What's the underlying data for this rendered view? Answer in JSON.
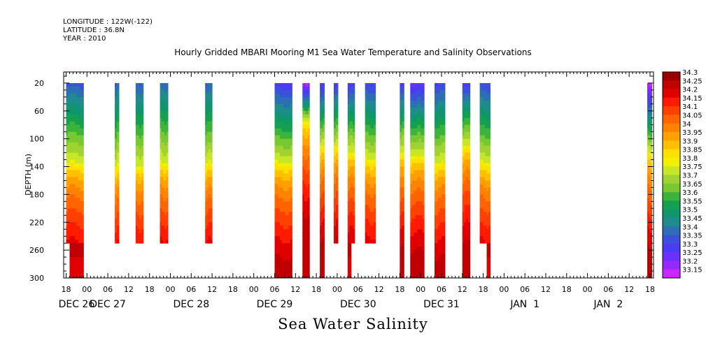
{
  "meta": {
    "longitude": "LONGITUDE : 122W(-122)",
    "latitude": "LATITUDE : 36.8N",
    "year": "YEAR : 2010"
  },
  "chart_data": {
    "type": "heatmap",
    "title": "Hourly Gridded MBARI Mooring M1 Sea Water Temperature and Salinity Observations",
    "xlabel": "Sea Water Salinity",
    "ylabel": "DEPTH (m)",
    "ylim": [
      300,
      4
    ],
    "y_ticks": [
      20,
      60,
      100,
      140,
      180,
      220,
      260,
      300
    ],
    "x_hour_ticks": [
      {
        "t": 0,
        "label": "18"
      },
      {
        "t": 6,
        "label": "00"
      },
      {
        "t": 12,
        "label": "06"
      },
      {
        "t": 18,
        "label": "12"
      },
      {
        "t": 24,
        "label": "18"
      },
      {
        "t": 30,
        "label": "00"
      },
      {
        "t": 36,
        "label": "06"
      },
      {
        "t": 42,
        "label": "12"
      },
      {
        "t": 48,
        "label": "18"
      },
      {
        "t": 54,
        "label": "00"
      },
      {
        "t": 60,
        "label": "06"
      },
      {
        "t": 66,
        "label": "12"
      },
      {
        "t": 72,
        "label": "18"
      },
      {
        "t": 78,
        "label": "00"
      },
      {
        "t": 84,
        "label": "06"
      },
      {
        "t": 90,
        "label": "12"
      },
      {
        "t": 96,
        "label": "18"
      },
      {
        "t": 102,
        "label": "00"
      },
      {
        "t": 108,
        "label": "06"
      },
      {
        "t": 114,
        "label": "12"
      },
      {
        "t": 120,
        "label": "18"
      },
      {
        "t": 126,
        "label": "00"
      },
      {
        "t": 132,
        "label": "06"
      },
      {
        "t": 138,
        "label": "12"
      },
      {
        "t": 144,
        "label": "18"
      },
      {
        "t": 150,
        "label": "00"
      },
      {
        "t": 156,
        "label": "06"
      },
      {
        "t": 162,
        "label": "12"
      },
      {
        "t": 168,
        "label": "18"
      }
    ],
    "x_day_labels": [
      {
        "t": 3,
        "label": "DEC 26"
      },
      {
        "t": 12,
        "label": "DEC 27"
      },
      {
        "t": 36,
        "label": "DEC 28"
      },
      {
        "t": 60,
        "label": "DEC 29"
      },
      {
        "t": 84,
        "label": "DEC 30"
      },
      {
        "t": 108,
        "label": "DEC 31"
      },
      {
        "t": 132,
        "label": "JAN  1"
      },
      {
        "t": 156,
        "label": "JAN  2"
      }
    ],
    "xlim": [
      -0.7,
      169
    ],
    "colorbar": {
      "levels": [
        "34.3",
        "34.25",
        "34.2",
        "34.15",
        "34.1",
        "34.05",
        "34",
        "33.95",
        "33.9",
        "33.85",
        "33.8",
        "33.75",
        "33.7",
        "33.65",
        "33.6",
        "33.55",
        "33.5",
        "33.45",
        "33.4",
        "33.35",
        "33.3",
        "33.25",
        "33.2",
        "33.15"
      ],
      "colors": [
        "#9b0000",
        "#c00000",
        "#e00000",
        "#ff1a00",
        "#ff4000",
        "#ff6400",
        "#ff8200",
        "#ffa000",
        "#ffc000",
        "#ffe000",
        "#f0f000",
        "#c8e628",
        "#a0d232",
        "#78c832",
        "#3cb43c",
        "#14a050",
        "#10966e",
        "#1e8c8c",
        "#2d6eb4",
        "#3c50dc",
        "#4a3cf0",
        "#6a30ff",
        "#9628ff",
        "#c828ff"
      ]
    },
    "segments": [
      {
        "t0": 0,
        "t1": 5,
        "bottom": 250,
        "deep_bottom": 300,
        "deep_t0": 1,
        "deep_t1": 5,
        "surf": 33.38,
        "mid_depth": 135
      },
      {
        "t0": 14,
        "t1": 15.2,
        "bottom": 250,
        "surf": 33.4,
        "mid_depth": 140
      },
      {
        "t0": 20,
        "t1": 22.2,
        "bottom": 250,
        "surf": 33.4,
        "mid_depth": 140
      },
      {
        "t0": 27,
        "t1": 29.3,
        "bottom": 250,
        "surf": 33.42,
        "mid_depth": 135
      },
      {
        "t0": 40,
        "t1": 42,
        "bottom": 250,
        "surf": 33.4,
        "mid_depth": 135
      },
      {
        "t0": 60,
        "t1": 65,
        "bottom": 300,
        "surf": 33.32,
        "mid_depth": 135
      },
      {
        "t0": 68,
        "t1": 70,
        "bottom": 300,
        "surf": 33.18,
        "mid_depth": 75
      },
      {
        "t0": 73,
        "t1": 74.3,
        "bottom": 300,
        "surf": 33.3,
        "mid_depth": 110
      },
      {
        "t0": 77,
        "t1": 78.2,
        "bottom": 250,
        "surf": 33.32,
        "mid_depth": 110
      },
      {
        "t0": 81,
        "t1": 83,
        "bottom": 250,
        "deep_bottom": 300,
        "deep_t0": 81,
        "deep_t1": 82,
        "surf": 33.32,
        "mid_depth": 120
      },
      {
        "t0": 86,
        "t1": 89,
        "bottom": 250,
        "surf": 33.35,
        "mid_depth": 130
      },
      {
        "t0": 96,
        "t1": 97.2,
        "bottom": 300,
        "surf": 33.32,
        "mid_depth": 120
      },
      {
        "t0": 99,
        "t1": 103,
        "bottom": 300,
        "surf": 33.28,
        "mid_depth": 125
      },
      {
        "t0": 106,
        "t1": 109,
        "bottom": 300,
        "surf": 33.35,
        "mid_depth": 135
      },
      {
        "t0": 114,
        "t1": 116.2,
        "bottom": 300,
        "surf": 33.32,
        "mid_depth": 110
      },
      {
        "t0": 119,
        "t1": 122,
        "bottom": 250,
        "deep_bottom": 300,
        "deep_t0": 121,
        "deep_t1": 122,
        "surf": 33.36,
        "mid_depth": 135
      },
      {
        "t0": 167.2,
        "t1": 168.5,
        "bottom": 300,
        "surf": 33.18,
        "mid_depth": 120
      }
    ]
  }
}
